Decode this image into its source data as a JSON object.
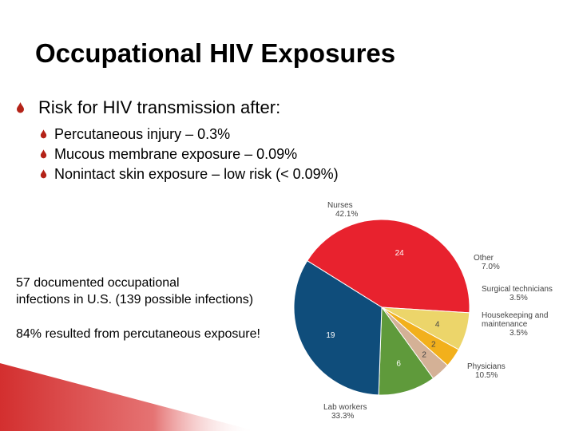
{
  "title": "Occupational HIV Exposures",
  "bullets": {
    "main": "Risk for HIV transmission after:",
    "sub": [
      "Percutaneous injury – 0.3%",
      "Mucous membrane exposure – 0.09%",
      "Nonintact skin exposure – low risk (< 0.09%)"
    ]
  },
  "notes": {
    "line1": "57 documented occupational",
    "line2": "infections in U.S. (139 possible infections)",
    "line3": "84% resulted from percutaneous exposure!"
  },
  "colors": {
    "bullet": "#b42318",
    "accent_bar": "#d32f2f"
  },
  "chart_data": {
    "type": "pie",
    "title": "",
    "slices": [
      {
        "label": "Nurses",
        "pct": "42.1%",
        "value": 24,
        "color": "#e8222e"
      },
      {
        "label": "Other",
        "pct": "7.0%",
        "value": 4,
        "color": "#ecd56a"
      },
      {
        "label": "Surgical technicians",
        "pct": "3.5%",
        "value": 2,
        "color": "#f2b01c"
      },
      {
        "label": "Housekeeping and maintenance",
        "pct": "3.5%",
        "value": 2,
        "color": "#d4b196"
      },
      {
        "label": "Physicians",
        "pct": "10.5%",
        "value": 6,
        "color": "#5f9a3b"
      },
      {
        "label": "Lab workers",
        "pct": "33.3%",
        "value": 19,
        "color": "#0f4d7b"
      }
    ]
  }
}
